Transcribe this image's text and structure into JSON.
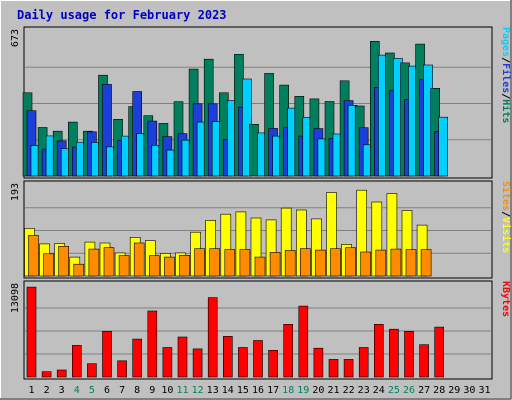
{
  "chart_data": {
    "type": "bar",
    "title": "Daily usage for February 2023",
    "days": [
      "1",
      "2",
      "3",
      "4",
      "5",
      "6",
      "7",
      "8",
      "9",
      "10",
      "11",
      "12",
      "13",
      "14",
      "15",
      "16",
      "17",
      "18",
      "19",
      "20",
      "21",
      "22",
      "23",
      "24",
      "25",
      "26",
      "27",
      "28",
      "29",
      "30",
      "31"
    ],
    "weekend_days": [
      "4",
      "5",
      "11",
      "12",
      "18",
      "19",
      "25",
      "26"
    ],
    "panels": [
      {
        "name": "hits-files-pages",
        "max_label": "673",
        "max": 673,
        "series": [
          {
            "name": "Hits",
            "color": "#007f5f",
            "values": [
              386,
              225,
              208,
              250,
              208,
              468,
              263,
              322,
              280,
              244,
              345,
              496,
              542,
              386,
              565,
              240,
              476,
              422,
              370,
              358,
              346,
              442,
              325,
              625,
              571,
              525,
              612,
              407,
              0,
              0,
              0
            ]
          },
          {
            "name": "Files",
            "color": "#1b3fd8",
            "values": [
              303,
              125,
              163,
              134,
              205,
              425,
              165,
              392,
              255,
              183,
              197,
              335,
              335,
              170,
              320,
              0,
              221,
              225,
              185,
              220,
              174,
              350,
              224,
              410,
              396,
              354,
              448,
              206,
              0,
              0,
              0
            ]
          },
          {
            "name": "Pages",
            "color": "#00d0ff",
            "values": [
              141,
              186,
              127,
              157,
              156,
              135,
              185,
              197,
              142,
              120,
              166,
              250,
              253,
              350,
              450,
              200,
              185,
              315,
              272,
              172,
              195,
              328,
              145,
              561,
              546,
              510,
              515,
              273,
              0,
              0,
              0
            ]
          }
        ]
      },
      {
        "name": "sites-visits",
        "max_label": "193",
        "max": 193,
        "series": [
          {
            "name": "Visits",
            "color": "#ffff00",
            "values": [
              101,
              68,
              69,
              40,
              72,
              70,
              49,
              82,
              75,
              48,
              49,
              93,
              118,
              131,
              136,
              123,
              119,
              144,
              140,
              121,
              177,
              67,
              182,
              157,
              175,
              139,
              108,
              0,
              0,
              0,
              0
            ]
          },
          {
            "name": "Sites",
            "color": "#ff8c00",
            "values": [
              86,
              47,
              63,
              25,
              57,
              60,
              43,
              70,
              43,
              40,
              44,
              58,
              58,
              56,
              56,
              40,
              50,
              54,
              58,
              55,
              58,
              60,
              51,
              55,
              57,
              56,
              56,
              0,
              0,
              0,
              0
            ]
          }
        ]
      },
      {
        "name": "kbytes",
        "max_label": "13098",
        "max": 13098,
        "series": [
          {
            "name": "KBytes",
            "color": "#ff0000",
            "values": [
              12800,
              750,
              1000,
              4500,
              1900,
              6500,
              2300,
              5400,
              9400,
              4200,
              5700,
              4000,
              11300,
              5800,
              4200,
              5200,
              3800,
              7500,
              10100,
              4100,
              2500,
              2500,
              4200,
              7500,
              6800,
              6500,
              4600,
              7100,
              0,
              0,
              0
            ]
          }
        ]
      }
    ],
    "right_labels": [
      [
        {
          "text": "Pages",
          "color": "#00d0ff"
        },
        {
          "text": "/",
          "color": "#000000"
        },
        {
          "text": "Files",
          "color": "#1b3fd8"
        },
        {
          "text": "/",
          "color": "#000000"
        },
        {
          "text": "Hits",
          "color": "#007f5f"
        }
      ],
      [
        {
          "text": "Sites",
          "color": "#ff8c00"
        },
        {
          "text": "/",
          "color": "#000000"
        },
        {
          "text": "Visits",
          "color": "#ffff00"
        }
      ],
      [
        {
          "text": "KBytes",
          "color": "#ff0000"
        }
      ]
    ]
  }
}
